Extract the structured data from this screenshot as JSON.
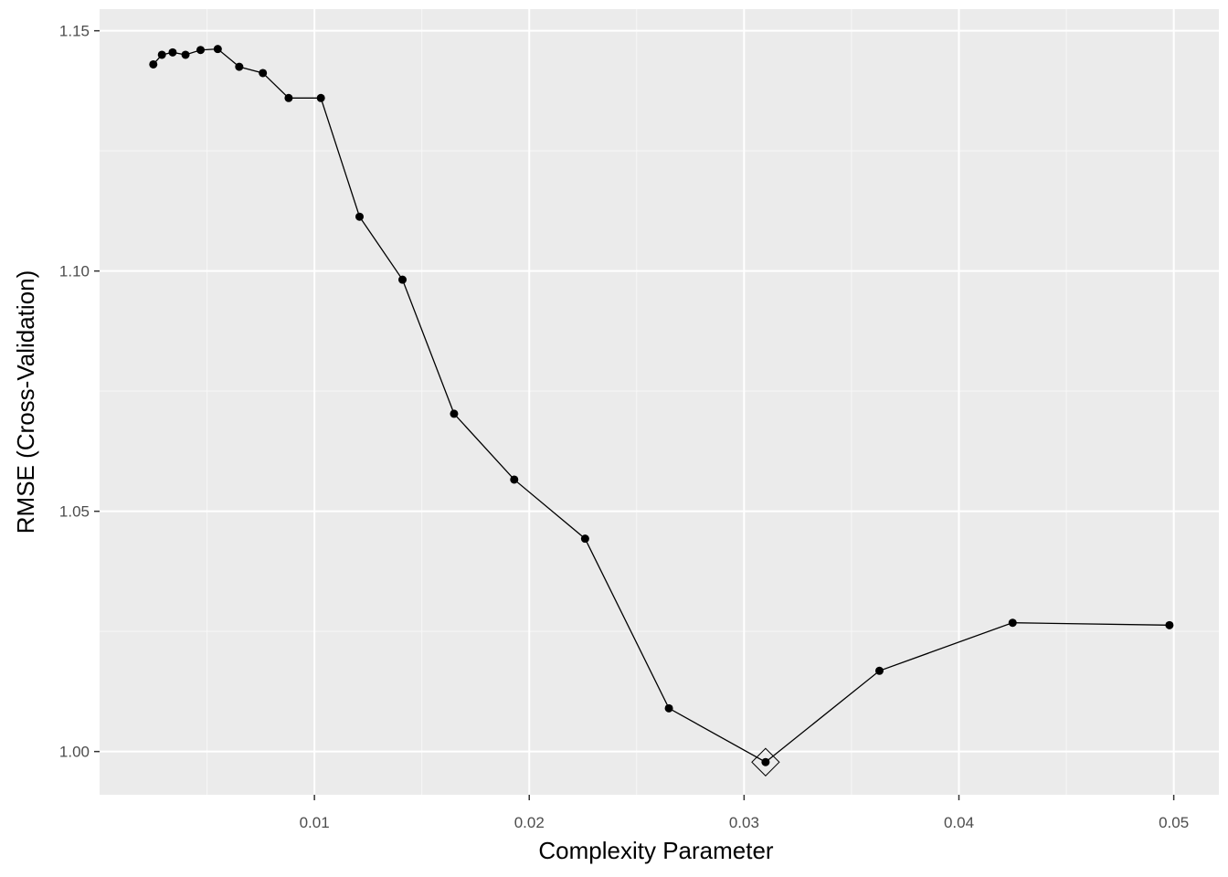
{
  "chart_data": {
    "type": "line",
    "title": "",
    "xlabel": "Complexity Parameter",
    "ylabel": "RMSE (Cross-Validation)",
    "xlim": [
      0.0,
      0.0521
    ],
    "ylim": [
      0.991,
      1.1545
    ],
    "x_ticks": [
      0.01,
      0.02,
      0.03,
      0.04,
      0.05
    ],
    "x_tick_labels": [
      "0.01",
      "0.02",
      "0.03",
      "0.04",
      "0.05"
    ],
    "y_ticks": [
      1.0,
      1.05,
      1.1,
      1.15
    ],
    "y_tick_labels": [
      "1.00",
      "1.05",
      "1.10",
      "1.15"
    ],
    "grid": true,
    "series": [
      {
        "x": [
          0.0025,
          0.0029,
          0.0034,
          0.004,
          0.0047,
          0.0055,
          0.0065,
          0.0076,
          0.0088,
          0.0103,
          0.0121,
          0.0141,
          0.0165,
          0.0193,
          0.0226,
          0.0265,
          0.031,
          0.0363,
          0.0425,
          0.0498
        ],
        "y": [
          1.143,
          1.145,
          1.1455,
          1.145,
          1.146,
          1.1462,
          1.1425,
          1.1412,
          1.136,
          1.136,
          1.1113,
          1.0982,
          1.0703,
          1.0566,
          1.0443,
          1.009,
          0.9978,
          1.0168,
          1.0268,
          1.0263
        ]
      }
    ],
    "best": {
      "x": 0.031,
      "y": 0.9978
    }
  }
}
